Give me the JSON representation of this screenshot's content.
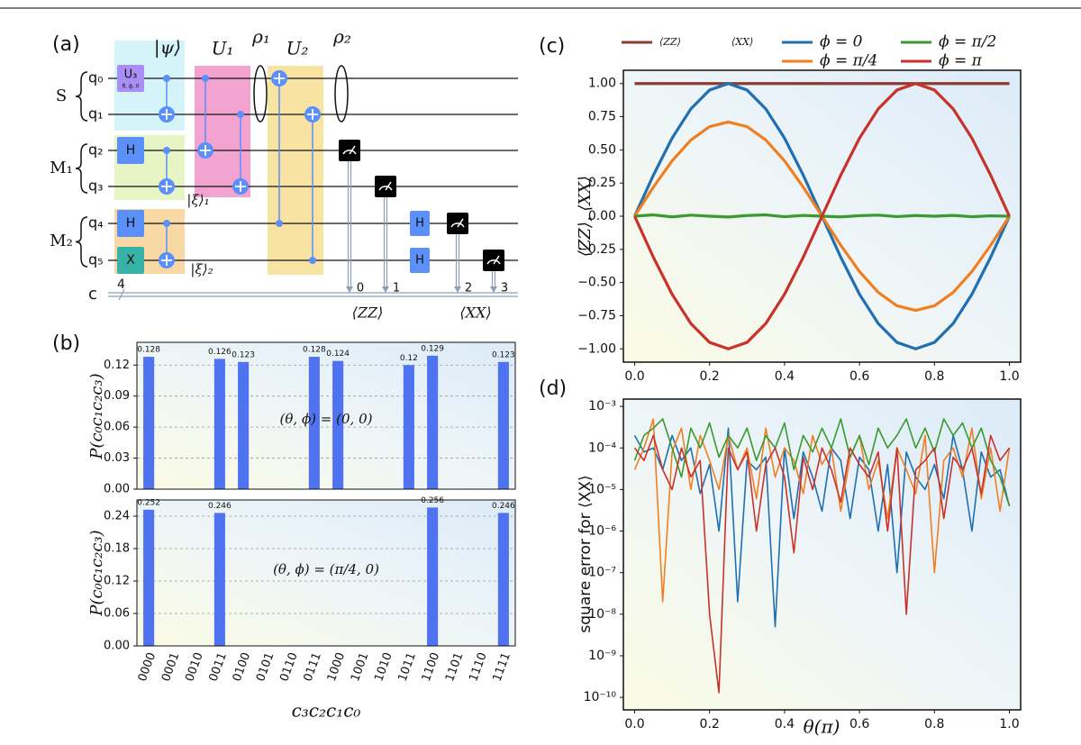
{
  "circuit": {
    "panel_label": "(a)",
    "qubits": [
      "q₀",
      "q₁",
      "q₂",
      "q₃",
      "q₄",
      "q₅"
    ],
    "registers": [
      "S",
      "M₁",
      "M₂"
    ],
    "classical": "c",
    "classical_width": "4",
    "gates": [
      "U₃",
      "H",
      "H",
      "X",
      "H",
      "H"
    ],
    "gate_params": "θ, ϕ, 0",
    "states": [
      "|ψ⟩",
      "|ξ⟩₁",
      "|ξ⟩₂"
    ],
    "blocks": [
      "U₁",
      "U₂"
    ],
    "density": [
      "ρ₁",
      "ρ₂"
    ],
    "bits": [
      "0",
      "1",
      "2",
      "3"
    ],
    "observables": [
      "⟨ZZ⟩",
      "⟨XX⟩"
    ]
  },
  "panel_labels": [
    "(b)",
    "(c)",
    "(d)"
  ],
  "chart_data": [
    {
      "type": "bar",
      "ylabel": "P(c₀c₁c₂c₃)",
      "annotation": "(θ, ϕ) = (0, 0)",
      "values": [
        0.128,
        0,
        0,
        0.126,
        0.123,
        0,
        0,
        0.128,
        0.124,
        0,
        0,
        0.12,
        0.129,
        0,
        0,
        0.123
      ],
      "color": "#4f73f0",
      "ylim": [
        0,
        0.142
      ],
      "yticks": [
        {
          "value": 0,
          "label": "0.00"
        },
        0.03,
        0.06,
        0.09,
        0.12
      ],
      "grid": true
    },
    {
      "type": "bar",
      "ylabel": "P(c₀c₁c₂c₃)",
      "xlabel": "c₃c₂c₁c₀",
      "annotation": "(θ, ϕ) = (π/4, 0)",
      "categories": [
        "0000",
        "0001",
        "0010",
        "0011",
        "0100",
        "0101",
        "0110",
        "0111",
        "1000",
        "1001",
        "1010",
        "1011",
        "1100",
        "1101",
        "1110",
        "1111"
      ],
      "values": [
        0.252,
        0,
        0,
        0.246,
        0,
        0,
        0,
        0,
        0,
        0,
        0,
        0,
        0.256,
        0,
        0,
        0.246
      ],
      "color": "#4f73f0",
      "ylim": [
        0,
        0.27
      ],
      "yticks": [
        {
          "value": 0,
          "label": "0.00"
        },
        0.06,
        0.12,
        0.18,
        0.24
      ],
      "grid": true
    },
    {
      "type": "line",
      "ylabel": "⟨ZZ⟩, ⟨XX⟩",
      "legend": "top",
      "legend_title": "⟨XX⟩",
      "x": [
        0,
        0.05,
        0.1,
        0.15,
        0.2,
        0.25,
        0.3,
        0.35,
        0.4,
        0.45,
        0.5,
        0.55,
        0.6,
        0.65,
        0.7,
        0.75,
        0.8,
        0.85,
        0.9,
        0.95,
        1
      ],
      "series": [
        {
          "name": "⟨ZZ⟩",
          "color": "#8c3b30",
          "values": [
            1,
            1,
            1,
            1,
            1,
            1,
            1,
            1,
            1,
            1,
            1,
            1,
            1,
            1,
            1,
            1,
            1,
            1,
            1,
            1,
            1
          ]
        },
        {
          "name": "ϕ = 0",
          "color": "#1f6fb2",
          "values": [
            0,
            0.309,
            0.588,
            0.809,
            0.951,
            1,
            0.951,
            0.809,
            0.588,
            0.309,
            0,
            -0.309,
            -0.588,
            -0.809,
            -0.951,
            -1,
            -0.951,
            -0.809,
            -0.588,
            -0.309,
            0
          ]
        },
        {
          "name": "ϕ = π/4",
          "color": "#f07f22",
          "values": [
            0,
            0.219,
            0.417,
            0.574,
            0.675,
            0.71,
            0.675,
            0.574,
            0.417,
            0.219,
            0,
            -0.219,
            -0.417,
            -0.574,
            -0.675,
            -0.71,
            -0.675,
            -0.574,
            -0.417,
            -0.219,
            0
          ]
        },
        {
          "name": "ϕ = π/2",
          "color": "#3a9a2f",
          "values": [
            0,
            0.01,
            -0.005,
            0.008,
            0,
            -0.006,
            0.005,
            0.01,
            -0.004,
            0.006,
            0,
            -0.005,
            0.004,
            0.008,
            -0.003,
            0.005,
            0,
            0.006,
            -0.004,
            0.003,
            0
          ]
        },
        {
          "name": "ϕ = π",
          "color": "#c7332b",
          "values": [
            0,
            -0.309,
            -0.588,
            -0.809,
            -0.951,
            -1,
            -0.951,
            -0.809,
            -0.588,
            -0.309,
            0,
            0.309,
            0.588,
            0.809,
            0.951,
            1,
            0.951,
            0.809,
            0.588,
            0.309,
            0
          ]
        }
      ],
      "xlim": [
        -0.03,
        1.03
      ],
      "ylim": [
        -1.1,
        1.1
      ],
      "xticks": [
        {
          "value": 0,
          "label": "0.0"
        },
        0.2,
        0.4,
        0.6,
        0.8,
        {
          "value": 1,
          "label": "1.0"
        }
      ],
      "yticks": [
        {
          "value": -1,
          "label": "−1.00"
        },
        {
          "value": -0.75,
          "label": "−0.75"
        },
        {
          "value": -0.5,
          "label": "−0.50"
        },
        {
          "value": -0.25,
          "label": "−0.25"
        },
        {
          "value": 0,
          "label": "0.00"
        },
        0.25,
        {
          "value": 0.5,
          "label": "0.50"
        },
        0.75,
        {
          "value": 1,
          "label": "1.00"
        }
      ]
    },
    {
      "type": "line",
      "ylabel": "square error for ⟨XX⟩",
      "xlabel": "θ(π)",
      "log_y": true,
      "x": [
        0,
        0.025,
        0.05,
        0.075,
        0.1,
        0.125,
        0.15,
        0.175,
        0.2,
        0.225,
        0.25,
        0.275,
        0.3,
        0.325,
        0.35,
        0.375,
        0.4,
        0.425,
        0.45,
        0.475,
        0.5,
        0.525,
        0.55,
        0.575,
        0.6,
        0.625,
        0.65,
        0.675,
        0.7,
        0.725,
        0.75,
        0.775,
        0.8,
        0.825,
        0.85,
        0.875,
        0.9,
        0.925,
        0.95,
        0.975,
        1
      ],
      "series": [
        {
          "color": "#1f6fb2",
          "values": [
            0.0002,
            8e-05,
            0.0001,
            3e-05,
            0.0002,
            5e-05,
            0.0001,
            8e-06,
            4e-05,
            1e-06,
            0.0003,
            2e-08,
            5e-05,
            3e-05,
            6e-05,
            5e-09,
            0.0001,
            2e-06,
            8e-05,
            2e-05,
            3e-06,
            0.0001,
            5e-05,
            2e-06,
            6e-05,
            3e-05,
            1e-06,
            4e-05,
            1e-07,
            8e-05,
            2e-05,
            1e-05,
            4e-05,
            6e-06,
            0.0002,
            3e-05,
            1e-06,
            8e-05,
            2e-05,
            3e-05,
            4e-06
          ]
        },
        {
          "color": "#f07f22",
          "values": [
            3e-05,
            0.0001,
            0.0005,
            2e-08,
            8e-05,
            0.0003,
            1e-05,
            0.0002,
            5e-05,
            1e-05,
            0.0002,
            3e-05,
            0.0001,
            6e-06,
            0.0003,
            2e-05,
            0.0001,
            5e-05,
            8e-06,
            0.0002,
            4e-05,
            0.0001,
            3e-06,
            6e-05,
            0.0002,
            1e-05,
            5e-05,
            2e-06,
            0.0001,
            3e-05,
            8e-06,
            0.0002,
            1e-07,
            5e-05,
            0.0001,
            2e-05,
            0.0003,
            6e-06,
            0.0001,
            3e-06,
            0.0001
          ]
        },
        {
          "color": "#3a9a2f",
          "values": [
            5e-05,
            0.0002,
            0.0003,
            0.0005,
            0.0001,
            2e-05,
            0.0003,
            0.0001,
            0.0004,
            6e-05,
            0.0002,
            0.0001,
            0.0003,
            5e-05,
            0.0002,
            0.0001,
            0.0004,
            3e-05,
            0.0002,
            8e-05,
            0.0003,
            0.0001,
            0.0005,
            6e-05,
            0.0002,
            4e-05,
            0.0003,
            0.0001,
            0.0002,
            0.0005,
            0.0001,
            0.0003,
            8e-05,
            0.0005,
            0.0002,
            0.0004,
            0.0001,
            0.0003,
            5e-05,
            2e-05,
            4e-06
          ]
        },
        {
          "color": "#c7332b",
          "values": [
            0.0001,
            5e-05,
            0.0002,
            3e-05,
            1e-05,
            0.0001,
            2e-05,
            5e-05,
            1e-08,
            1.3e-10,
            0.0001,
            3e-05,
            8e-05,
            1e-06,
            4e-05,
            0.0001,
            2e-05,
            3e-07,
            6e-05,
            1e-05,
            0.0001,
            3e-05,
            5e-06,
            0.0001,
            4e-05,
            2e-05,
            8e-05,
            1e-06,
            0.0001,
            1e-08,
            3e-05,
            5e-05,
            0.0001,
            2e-06,
            6e-05,
            3e-05,
            0.0001,
            8e-06,
            0.0002,
            5e-05,
            0.0001
          ]
        }
      ],
      "xlim": [
        -0.03,
        1.03
      ],
      "ylim": [
        5e-11,
        0.0015
      ],
      "xticks": [
        {
          "value": 0,
          "label": "0.0"
        },
        0.2,
        0.4,
        0.6,
        0.8,
        {
          "value": 1,
          "label": "1.0"
        }
      ],
      "yticks": [
        {
          "value": 1e-10,
          "label": "10⁻¹⁰"
        },
        {
          "value": 1e-09,
          "label": "10⁻⁹"
        },
        {
          "value": 1e-08,
          "label": "10⁻⁸"
        },
        {
          "value": 1e-07,
          "label": "10⁻⁷"
        },
        {
          "value": 1e-06,
          "label": "10⁻⁶"
        },
        {
          "value": 1e-05,
          "label": "10⁻⁵"
        },
        {
          "value": 0.0001,
          "label": "10⁻⁴"
        },
        {
          "value": 0.001,
          "label": "10⁻³"
        }
      ]
    }
  ]
}
